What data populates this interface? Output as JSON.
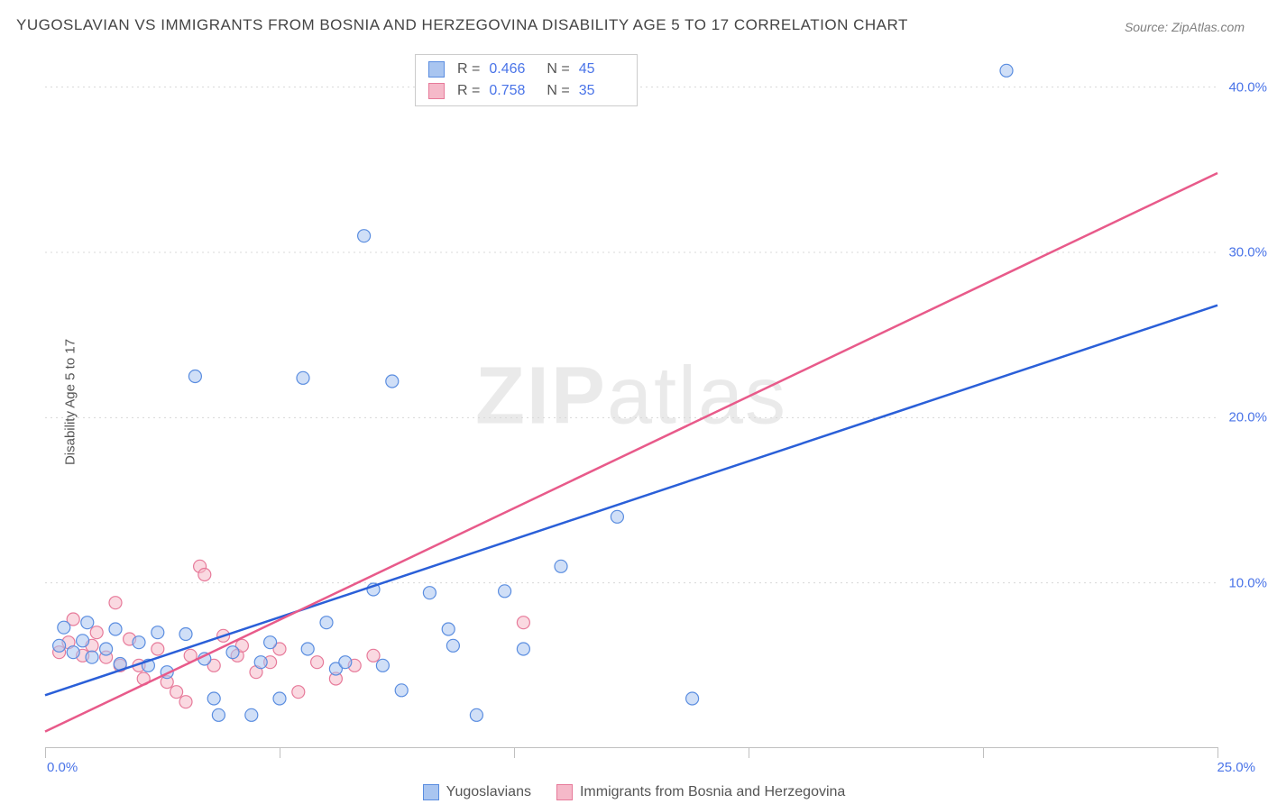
{
  "title": "YUGOSLAVIAN VS IMMIGRANTS FROM BOSNIA AND HERZEGOVINA DISABILITY AGE 5 TO 17 CORRELATION CHART",
  "source": "Source: ZipAtlas.com",
  "y_axis_label": "Disability Age 5 to 17",
  "watermark_bold": "ZIP",
  "watermark_rest": "atlas",
  "chart": {
    "type": "scatter",
    "xlim": [
      0,
      25
    ],
    "ylim": [
      0,
      42
    ],
    "x_ticks": [
      0,
      5,
      10,
      15,
      20,
      25
    ],
    "x_tick_labels": [
      "0.0%",
      "",
      "",
      "",
      "",
      "25.0%"
    ],
    "y_ticks": [
      10,
      20,
      30,
      40
    ],
    "y_tick_labels": [
      "10.0%",
      "20.0%",
      "30.0%",
      "40.0%"
    ],
    "background_color": "#ffffff",
    "grid_color": "#d8d8d8",
    "marker_radius": 7,
    "marker_opacity": 0.55,
    "series": [
      {
        "name": "Yugoslavians",
        "color_fill": "#a9c5f0",
        "color_stroke": "#5a8de0",
        "trend_color": "#2a5fd8",
        "R": "0.466",
        "N": "45",
        "trend": {
          "x1": 0,
          "y1": 3.2,
          "x2": 25,
          "y2": 26.8
        },
        "points": [
          [
            0.3,
            6.2
          ],
          [
            0.4,
            7.3
          ],
          [
            0.6,
            5.8
          ],
          [
            0.8,
            6.5
          ],
          [
            0.9,
            7.6
          ],
          [
            1.0,
            5.5
          ],
          [
            1.3,
            6.0
          ],
          [
            1.5,
            7.2
          ],
          [
            1.6,
            5.1
          ],
          [
            2.0,
            6.4
          ],
          [
            2.2,
            5.0
          ],
          [
            2.4,
            7.0
          ],
          [
            2.6,
            4.6
          ],
          [
            3.0,
            6.9
          ],
          [
            3.2,
            22.5
          ],
          [
            3.4,
            5.4
          ],
          [
            3.6,
            3.0
          ],
          [
            3.7,
            2.0
          ],
          [
            4.0,
            5.8
          ],
          [
            4.4,
            2.0
          ],
          [
            4.6,
            5.2
          ],
          [
            4.8,
            6.4
          ],
          [
            5.0,
            3.0
          ],
          [
            5.5,
            22.4
          ],
          [
            5.6,
            6.0
          ],
          [
            6.0,
            7.6
          ],
          [
            6.2,
            4.8
          ],
          [
            6.4,
            5.2
          ],
          [
            6.8,
            31.0
          ],
          [
            7.0,
            9.6
          ],
          [
            7.2,
            5.0
          ],
          [
            7.4,
            22.2
          ],
          [
            7.6,
            3.5
          ],
          [
            8.2,
            9.4
          ],
          [
            8.6,
            7.2
          ],
          [
            8.7,
            6.2
          ],
          [
            9.2,
            2.0
          ],
          [
            9.8,
            9.5
          ],
          [
            10.2,
            6.0
          ],
          [
            11.0,
            11.0
          ],
          [
            12.2,
            14.0
          ],
          [
            13.8,
            3.0
          ],
          [
            20.5,
            41.0
          ]
        ]
      },
      {
        "name": "Immigrants from Bosnia and Herzegovina",
        "color_fill": "#f5b9c9",
        "color_stroke": "#e77a9a",
        "trend_color": "#e85a8a",
        "R": "0.758",
        "N": "35",
        "trend": {
          "x1": 0,
          "y1": 1.0,
          "x2": 25,
          "y2": 34.8
        },
        "points": [
          [
            0.3,
            5.8
          ],
          [
            0.5,
            6.4
          ],
          [
            0.6,
            7.8
          ],
          [
            0.8,
            5.6
          ],
          [
            1.0,
            6.2
          ],
          [
            1.1,
            7.0
          ],
          [
            1.3,
            5.5
          ],
          [
            1.5,
            8.8
          ],
          [
            1.6,
            5.0
          ],
          [
            1.8,
            6.6
          ],
          [
            2.0,
            5.0
          ],
          [
            2.1,
            4.2
          ],
          [
            2.4,
            6.0
          ],
          [
            2.6,
            4.0
          ],
          [
            2.8,
            3.4
          ],
          [
            3.0,
            2.8
          ],
          [
            3.1,
            5.6
          ],
          [
            3.3,
            11.0
          ],
          [
            3.4,
            10.5
          ],
          [
            3.6,
            5.0
          ],
          [
            3.8,
            6.8
          ],
          [
            4.1,
            5.6
          ],
          [
            4.2,
            6.2
          ],
          [
            4.5,
            4.6
          ],
          [
            4.8,
            5.2
          ],
          [
            5.0,
            6.0
          ],
          [
            5.4,
            3.4
          ],
          [
            5.8,
            5.2
          ],
          [
            6.2,
            4.2
          ],
          [
            6.6,
            5.0
          ],
          [
            7.0,
            5.6
          ],
          [
            10.2,
            7.6
          ]
        ]
      }
    ]
  }
}
